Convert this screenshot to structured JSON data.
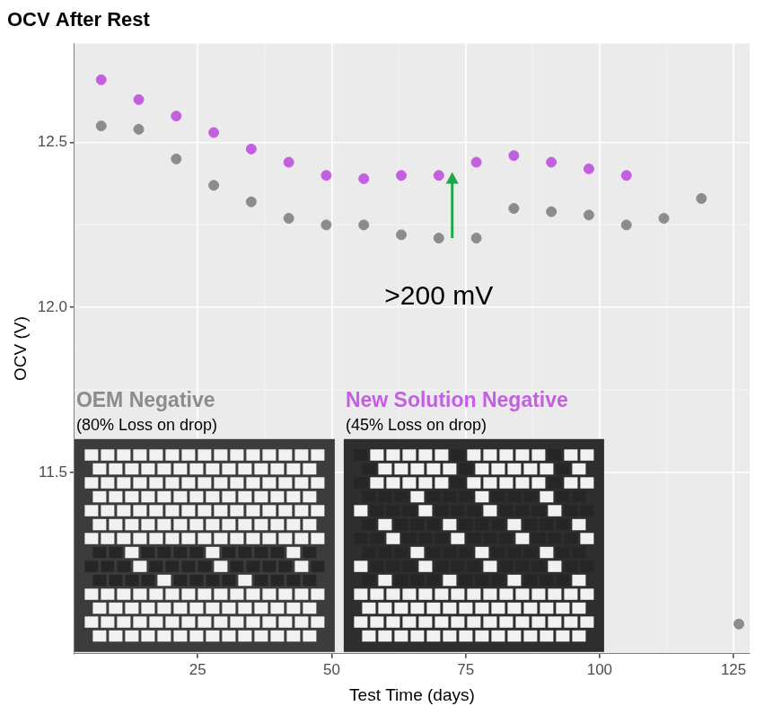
{
  "chart_data": {
    "type": "scatter",
    "title": "OCV After Rest",
    "x_label": "Test Time (days)",
    "y_label": "OCV (V)",
    "xlim": [
      2,
      128
    ],
    "xticks": [
      25,
      50,
      75,
      100,
      125
    ],
    "ylim": [
      10.95,
      12.8
    ],
    "yticks": [
      11.5,
      {
        "value": 12,
        "label": "12.0"
      },
      12.5
    ],
    "grid": true,
    "series": [
      {
        "color": "#8c8c8c",
        "marker": "circle",
        "x": [
          7,
          14,
          21,
          28,
          35,
          42,
          49,
          56,
          63,
          70,
          77,
          84,
          91,
          98,
          105,
          112,
          119,
          126
        ],
        "values": [
          12.55,
          12.54,
          12.45,
          12.37,
          12.32,
          12.27,
          12.25,
          12.25,
          12.22,
          12.21,
          12.21,
          12.3,
          12.29,
          12.28,
          12.25,
          12.27,
          12.33,
          11.04
        ]
      },
      {
        "color": "#c260e0",
        "marker": "circle",
        "x": [
          7,
          14,
          21,
          28,
          35,
          42,
          49,
          56,
          63,
          70,
          77,
          84,
          91,
          98,
          105
        ],
        "values": [
          12.69,
          12.63,
          12.58,
          12.53,
          12.48,
          12.44,
          12.4,
          12.39,
          12.4,
          12.4,
          12.44,
          12.46,
          12.44,
          12.42,
          12.4
        ]
      }
    ],
    "arrow": {
      "color": "#1fa84a",
      "x": 72.5,
      "y_from": 12.21,
      "y_to": 12.41
    },
    "annotations": [
      {
        "text": ">200 mV",
        "x": 70,
        "y": 12.03,
        "color": "#000000"
      }
    ],
    "images": [
      {
        "title": "OEM Negative",
        "caption": "(80% Loss on drop)",
        "color": "#8c8c8c"
      },
      {
        "title": "New Solution Negative",
        "caption": "(45% Loss on drop)",
        "color": "#c260e0"
      }
    ]
  }
}
